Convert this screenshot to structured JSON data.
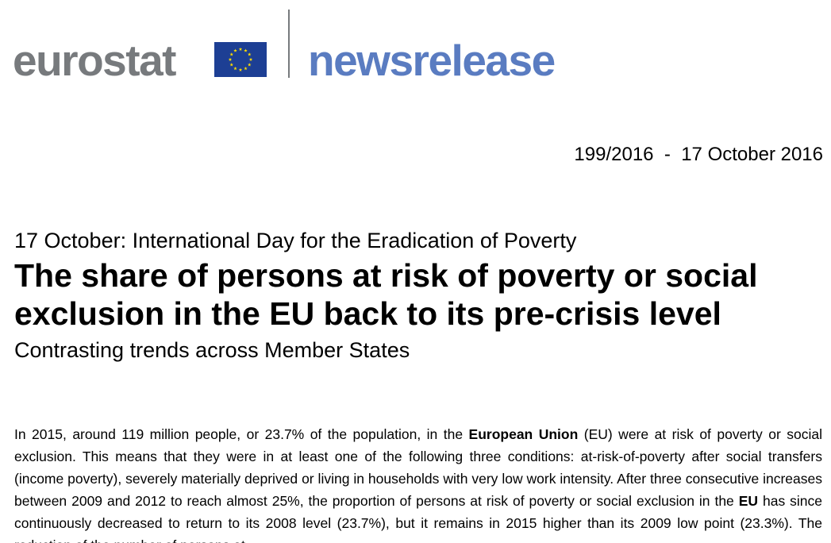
{
  "header": {
    "brand": "eurostat",
    "product": "newsrelease",
    "flag_icon": "eu-flag-icon",
    "colors": {
      "brand_grey": "#777a7d",
      "product_blue": "#5a7cc1",
      "flag_blue": "#1d3f94",
      "flag_star": "#ffde00"
    }
  },
  "release": {
    "number": "199/2016",
    "separator": "-",
    "date": "17 October 2016"
  },
  "article": {
    "kicker": "17 October: International Day for the Eradication of Poverty",
    "headline": "The share of persons at risk of poverty or social exclusion in the EU back to its pre-crisis level",
    "subtitle": "Contrasting trends across Member States",
    "body": {
      "p1_a": "In 2015, around 119 million people, or 23.7% of the population, in the ",
      "p1_b": "European Union",
      "p1_c": " (EU) were at risk of poverty or social exclusion. This means that they were in at least one of the following three conditions: at-risk-of-poverty after social transfers (income poverty), severely materially deprived or living in households with very low work intensity. After three consecutive increases between 2009 and 2012 to reach almost 25%, the proportion of persons at risk of poverty or social exclusion in the ",
      "p1_d": "EU",
      "p1_e": " has since continuously decreased to return to its 2008 level (23.7%), but it remains in 2015 higher than its 2009 low point (23.3%). The reduction of the number of persons at"
    }
  }
}
